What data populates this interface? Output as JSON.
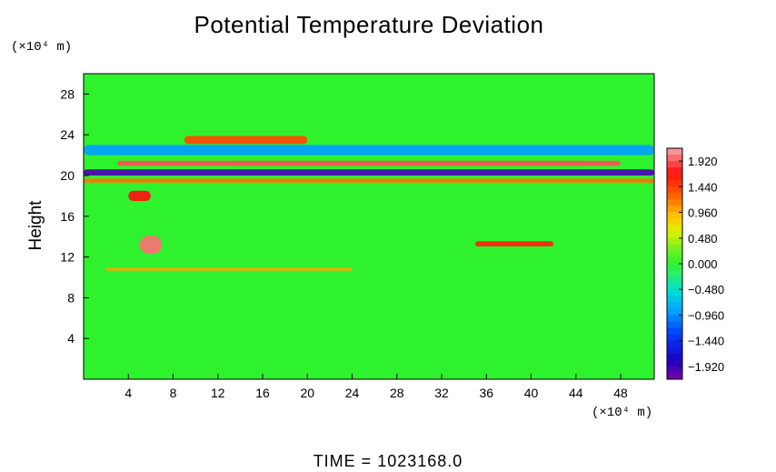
{
  "chart_data": {
    "type": "heatmap",
    "title": "Potential Temperature Deviation",
    "ylabel": "Height",
    "x_unit": "(×10⁴ m)",
    "y_unit": "(×10⁴ m)",
    "xlim": [
      0,
      51
    ],
    "ylim": [
      0,
      30
    ],
    "x_ticks": [
      4,
      8,
      12,
      16,
      20,
      24,
      28,
      32,
      36,
      40,
      44,
      48
    ],
    "y_ticks": [
      4,
      8,
      12,
      16,
      20,
      24,
      28
    ],
    "colorbar": {
      "min": -2.16,
      "max": 2.16,
      "labels": [
        1.92,
        1.44,
        0.96,
        0.48,
        0.0,
        -0.48,
        -0.96,
        -1.44,
        -1.92
      ],
      "label_text": [
        "1.920",
        "1.440",
        "0.960",
        "0.480",
        "0.000",
        "−0.480",
        "−0.960",
        "−1.440",
        "−1.920"
      ]
    },
    "features": [
      {
        "x0": 0,
        "x1": 51,
        "y": 20.3,
        "thickness": 0.6,
        "value": -2.0
      },
      {
        "x0": 3,
        "x1": 48,
        "y": 21.2,
        "thickness": 0.5,
        "value": 1.9
      },
      {
        "x0": 9,
        "x1": 20,
        "y": 23.5,
        "thickness": 0.8,
        "value": 1.4
      },
      {
        "x0": 0,
        "x1": 51,
        "y": 19.5,
        "thickness": 0.4,
        "value": 1.2
      },
      {
        "x0": 0,
        "x1": 51,
        "y": 22.5,
        "thickness": 1.0,
        "value": -0.9
      },
      {
        "x0": 2,
        "x1": 24,
        "y": 10.8,
        "thickness": 0.3,
        "value": 1.0
      },
      {
        "x0": 35,
        "x1": 42,
        "y": 13.3,
        "thickness": 0.5,
        "value": 1.6
      },
      {
        "x0": 5,
        "x1": 7,
        "y": 13.2,
        "thickness": 1.8,
        "value": 2.0
      },
      {
        "x0": 4,
        "x1": 6,
        "y": 18.0,
        "thickness": 1.0,
        "value": 1.7
      }
    ]
  },
  "footer": {
    "time_label": "TIME  =  1023168.0"
  },
  "colors": {
    "background_field": "#2ff22f",
    "axis": "#000000"
  }
}
